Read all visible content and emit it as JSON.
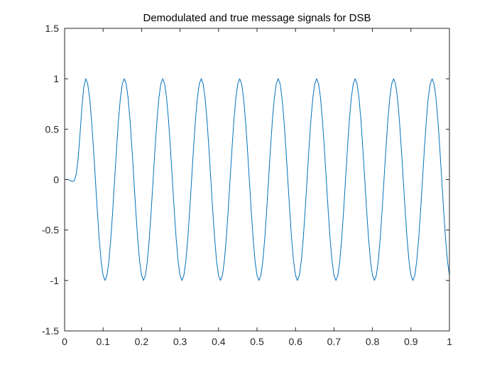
{
  "chart_data": {
    "type": "line",
    "title": "Demodulated and true message signals for DSB",
    "xlabel": "",
    "ylabel": "",
    "xlim": [
      0,
      1
    ],
    "ylim": [
      -1.5,
      1.5
    ],
    "x_ticks": [
      0,
      0.1,
      0.2,
      0.3,
      0.4,
      0.5,
      0.6,
      0.7,
      0.8,
      0.9,
      1
    ],
    "x_tick_labels": [
      "0",
      "0.1",
      "0.2",
      "0.3",
      "0.4",
      "0.5",
      "0.6",
      "0.7",
      "0.8",
      "0.9",
      "1"
    ],
    "y_ticks": [
      -1.5,
      -1,
      -0.5,
      0,
      0.5,
      1,
      1.5
    ],
    "y_tick_labels": [
      "-1.5",
      "-1",
      "-0.5",
      "0",
      "0.5",
      "1",
      "1.5"
    ],
    "grid": false,
    "box": true,
    "series": [
      {
        "color": "#0072BD",
        "x": [
          0,
          0.01,
          0.015,
          0.02,
          0.025,
          0.03,
          0.035,
          0.04,
          0.045,
          0.05,
          0.055,
          0.06,
          0.065,
          0.07,
          0.075,
          0.08,
          0.085,
          0.09,
          0.095,
          0.1,
          0.105,
          0.11,
          0.115,
          0.12,
          0.125,
          0.13,
          0.135,
          0.14,
          0.145,
          0.15,
          0.155,
          0.16,
          0.165,
          0.17,
          0.175,
          0.18,
          0.185,
          0.19,
          0.195,
          0.2,
          0.205,
          0.21,
          0.215,
          0.22,
          0.225,
          0.23,
          0.235,
          0.24,
          0.245,
          0.25,
          0.255,
          0.26,
          0.265,
          0.27,
          0.275,
          0.28,
          0.285,
          0.29,
          0.295,
          0.3,
          0.305,
          0.31,
          0.315,
          0.32,
          0.325,
          0.33,
          0.335,
          0.34,
          0.345,
          0.35,
          0.355,
          0.36,
          0.365,
          0.37,
          0.375,
          0.38,
          0.385,
          0.39,
          0.395,
          0.4,
          0.405,
          0.41,
          0.415,
          0.42,
          0.425,
          0.43,
          0.435,
          0.44,
          0.445,
          0.45,
          0.455,
          0.46,
          0.465,
          0.47,
          0.475,
          0.48,
          0.485,
          0.49,
          0.495,
          0.5,
          0.505,
          0.51,
          0.515,
          0.52,
          0.525,
          0.53,
          0.535,
          0.54,
          0.545,
          0.55,
          0.555,
          0.56,
          0.565,
          0.57,
          0.575,
          0.58,
          0.585,
          0.59,
          0.595,
          0.6,
          0.605,
          0.61,
          0.615,
          0.62,
          0.625,
          0.63,
          0.635,
          0.64,
          0.645,
          0.65,
          0.655,
          0.66,
          0.665,
          0.67,
          0.675,
          0.68,
          0.685,
          0.69,
          0.695,
          0.7,
          0.705,
          0.71,
          0.715,
          0.72,
          0.725,
          0.73,
          0.735,
          0.74,
          0.745,
          0.75,
          0.755,
          0.76,
          0.765,
          0.77,
          0.775,
          0.78,
          0.785,
          0.79,
          0.795,
          0.8,
          0.805,
          0.81,
          0.815,
          0.82,
          0.825,
          0.83,
          0.835,
          0.84,
          0.845,
          0.85,
          0.855,
          0.86,
          0.865,
          0.87,
          0.875,
          0.88,
          0.885,
          0.89,
          0.895,
          0.9,
          0.905,
          0.91,
          0.915,
          0.92,
          0.925,
          0.93,
          0.935,
          0.94,
          0.945,
          0.95,
          0.955,
          0.96,
          0.965,
          0.97,
          0.975,
          0.98,
          0.985,
          0.99,
          0.995,
          1
        ],
        "y": [
          0,
          0,
          -0.01,
          -0.02,
          -0.01,
          0.05,
          0.2,
          0.45,
          0.72,
          0.92,
          1,
          0.95,
          0.81,
          0.59,
          0.31,
          0,
          -0.31,
          -0.59,
          -0.81,
          -0.95,
          -1,
          -0.95,
          -0.81,
          -0.59,
          -0.31,
          0,
          0.31,
          0.59,
          0.81,
          0.95,
          1,
          0.95,
          0.81,
          0.59,
          0.31,
          0,
          -0.31,
          -0.59,
          -0.81,
          -0.95,
          -1,
          -0.95,
          -0.81,
          -0.59,
          -0.31,
          0,
          0.31,
          0.59,
          0.81,
          0.95,
          1,
          0.95,
          0.81,
          0.59,
          0.31,
          0,
          -0.31,
          -0.59,
          -0.81,
          -0.95,
          -1,
          -0.95,
          -0.81,
          -0.59,
          -0.31,
          0,
          0.31,
          0.59,
          0.81,
          0.95,
          1,
          0.95,
          0.81,
          0.59,
          0.31,
          0,
          -0.31,
          -0.59,
          -0.81,
          -0.95,
          -1,
          -0.95,
          -0.81,
          -0.59,
          -0.31,
          0,
          0.31,
          0.59,
          0.81,
          0.95,
          1,
          0.95,
          0.81,
          0.59,
          0.31,
          0,
          -0.31,
          -0.59,
          -0.81,
          -0.95,
          -1,
          -0.95,
          -0.81,
          -0.59,
          -0.31,
          0,
          0.31,
          0.59,
          0.81,
          0.95,
          1,
          0.95,
          0.81,
          0.59,
          0.31,
          0,
          -0.31,
          -0.59,
          -0.81,
          -0.95,
          -1,
          -0.95,
          -0.81,
          -0.59,
          -0.31,
          0,
          0.31,
          0.59,
          0.81,
          0.95,
          1,
          0.95,
          0.81,
          0.59,
          0.31,
          0,
          -0.31,
          -0.59,
          -0.81,
          -0.95,
          -1,
          -0.95,
          -0.81,
          -0.59,
          -0.31,
          0,
          0.31,
          0.59,
          0.81,
          0.95,
          1,
          0.95,
          0.81,
          0.59,
          0.31,
          0,
          -0.31,
          -0.59,
          -0.81,
          -0.95,
          -1,
          -0.95,
          -0.81,
          -0.59,
          -0.31,
          0,
          0.31,
          0.59,
          0.81,
          0.95,
          1,
          0.95,
          0.81,
          0.59,
          0.31,
          0,
          -0.31,
          -0.59,
          -0.81,
          -0.95,
          -1,
          -0.95,
          -0.81,
          -0.59,
          -0.31,
          0,
          0.31,
          0.59,
          0.81,
          0.95,
          1,
          0.95,
          0.81,
          0.59,
          0.31,
          0,
          -0.31,
          -0.59,
          -0.81,
          -0.95
        ]
      }
    ]
  }
}
